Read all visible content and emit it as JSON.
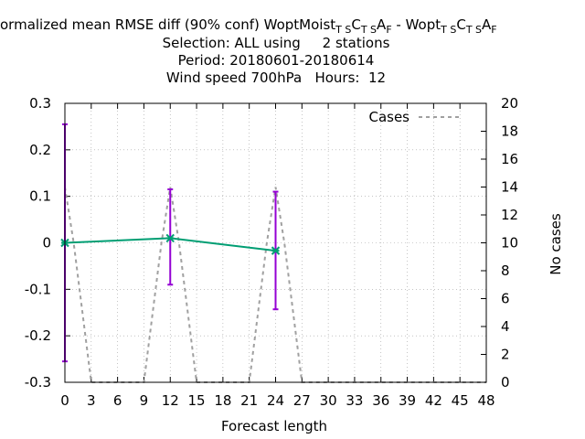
{
  "chart_data": {
    "type": "line",
    "title": {
      "line1_main": "ormalized mean RMSE diff (90% conf) WoptMoist",
      "line1_sub1": "T S",
      "line1_mid1": "C",
      "line1_sub2": "T S",
      "line1_mid2": "A",
      "line1_sub3": "F",
      "line1_sep": " - Wopt",
      "line1_sub4": "T S",
      "line1_mid3": "C",
      "line1_sub5": "T S",
      "line1_mid4": "A",
      "line1_sub6": "F",
      "line2": "Selection: ALL using     2 stations",
      "line3": "Period: 20180601-20180614",
      "line4": "Wind speed 700hPa   Hours:  12"
    },
    "xlabel": "Forecast length",
    "ylabel_right": "No cases",
    "x_ticks": [
      "0",
      "3",
      "6",
      "9",
      "12",
      "15",
      "18",
      "21",
      "24",
      "27",
      "30",
      "33",
      "36",
      "39",
      "42",
      "45",
      "48"
    ],
    "y_ticks_left": [
      "-0.3",
      "-0.2",
      "-0.1",
      "0",
      "0.1",
      "0.2",
      "0.3"
    ],
    "y_ticks_right": [
      "0",
      "2",
      "4",
      "6",
      "8",
      "10",
      "12",
      "14",
      "16",
      "18",
      "20"
    ],
    "xlim": [
      0,
      48
    ],
    "ylim_left": [
      -0.3,
      0.3
    ],
    "ylim_right": [
      0,
      20
    ],
    "grid": true,
    "legend": {
      "label": "Cases",
      "position": "top-right"
    },
    "series": [
      {
        "axis": "left",
        "color": "#009e73",
        "x": [
          0,
          12,
          24
        ],
        "y": [
          0.0,
          0.01,
          -0.017
        ],
        "err_low": [
          -0.255,
          -0.09,
          -0.143
        ],
        "err_high": [
          0.255,
          0.115,
          0.11
        ],
        "err_color": "#9400d3"
      },
      {
        "name": "Cases",
        "axis": "right",
        "color": "#a0a0a0",
        "dash": true,
        "x": [
          0,
          1,
          2,
          3,
          4,
          5,
          6,
          7,
          8,
          9,
          10,
          11,
          12,
          13,
          14,
          15,
          16,
          17,
          18,
          19,
          20,
          21,
          22,
          23,
          24,
          25,
          26,
          27,
          28,
          29,
          30,
          31,
          32,
          33,
          34,
          35,
          36,
          37,
          38,
          39,
          40,
          41,
          42,
          43,
          44,
          45,
          46,
          47,
          48
        ],
        "y": [
          14,
          10,
          5,
          0,
          0,
          0,
          0,
          0,
          0,
          0,
          5,
          10,
          14,
          10,
          5,
          0,
          0,
          0,
          0,
          0,
          0,
          0,
          5,
          10,
          14,
          10,
          5,
          0,
          0,
          0,
          0,
          0,
          0,
          0,
          0,
          0,
          0,
          0,
          0,
          0,
          0,
          0,
          0,
          0,
          0,
          0,
          0,
          0,
          0
        ]
      }
    ]
  }
}
